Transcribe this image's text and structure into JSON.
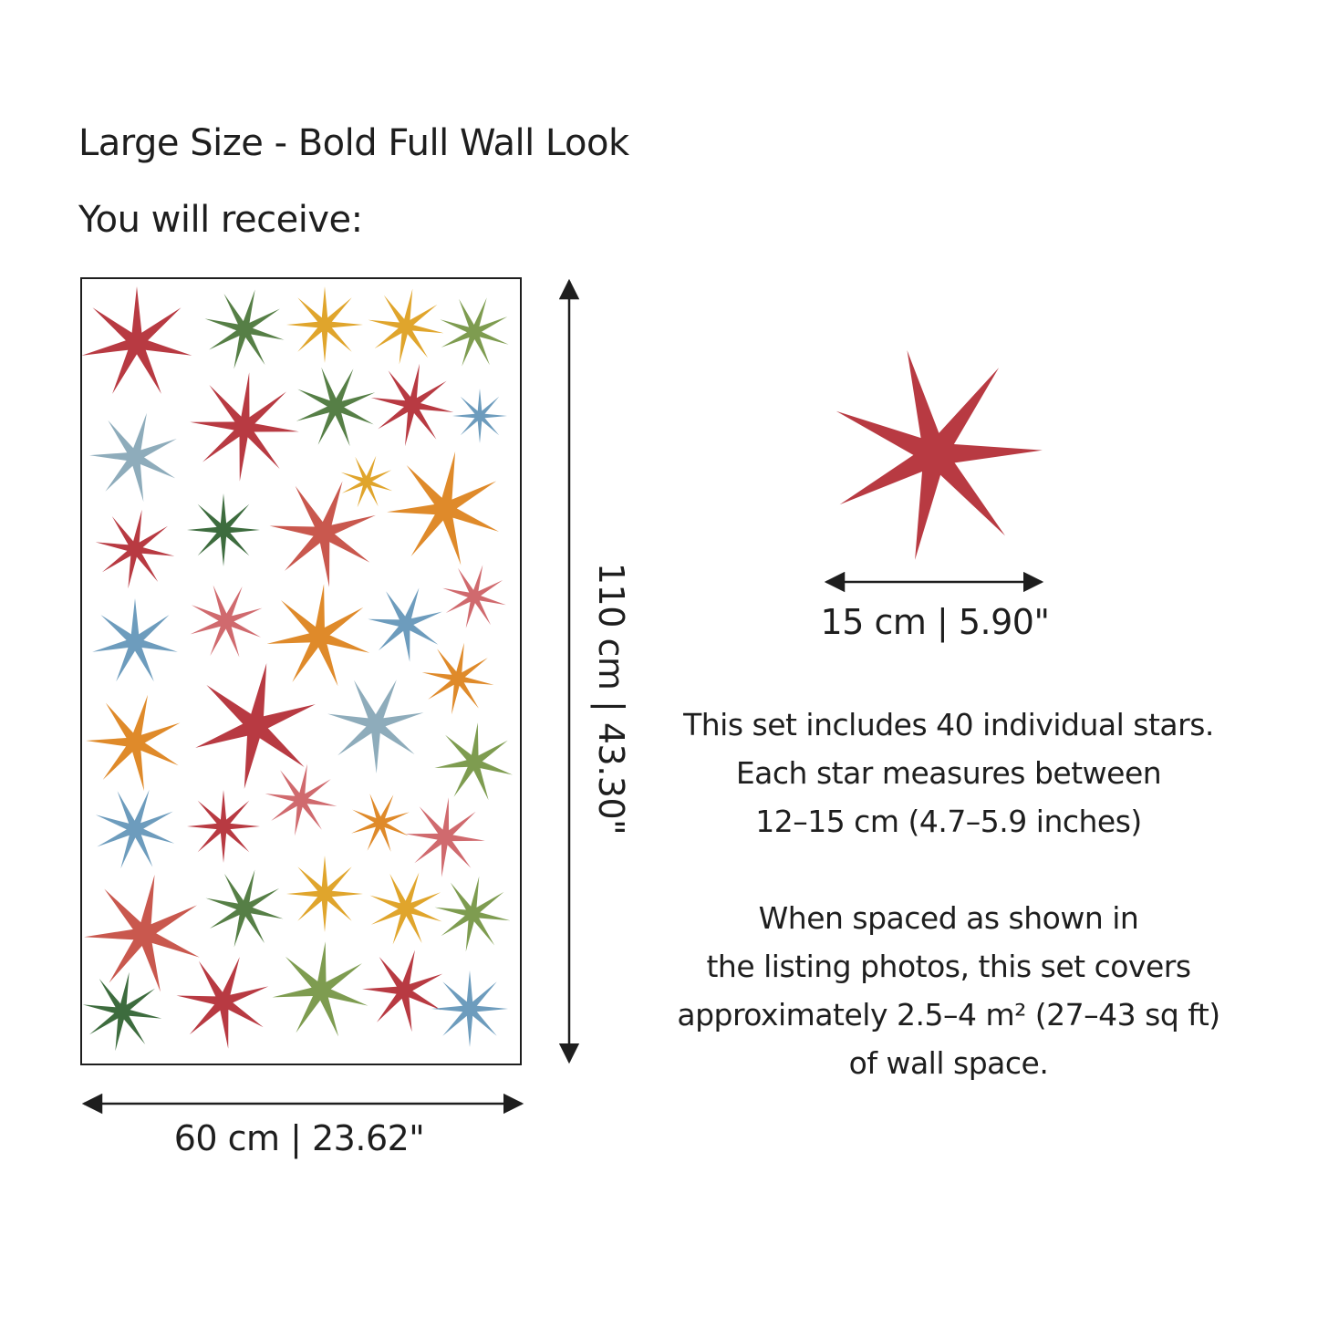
{
  "header": {
    "title": "Large Size - Bold Full Wall Look",
    "subtitle": "You will receive:"
  },
  "sheet": {
    "width_label": "60 cm |  23.62\"",
    "height_label": "110 cm |  43.30\"",
    "star_colors": [
      "#b83a42",
      "#567f46",
      "#e0a52c",
      "#7e9c50",
      "#8eacbb",
      "#6d9cbd",
      "#d06a6e",
      "#df8a2a",
      "#3d6c3e",
      "#c9584e"
    ]
  },
  "single_star": {
    "color": "#b83a42",
    "size_label": "15 cm | 5.90\""
  },
  "description": {
    "paragraph1": [
      "This set includes 40 individual stars.",
      "Each star measures between",
      "12–15 cm (4.7–5.9 inches)"
    ],
    "paragraph2": [
      "When spaced as shown in",
      "the listing photos, this set covers",
      "approximately 2.5–4 m² (27–43 sq ft)",
      "of wall space."
    ]
  }
}
